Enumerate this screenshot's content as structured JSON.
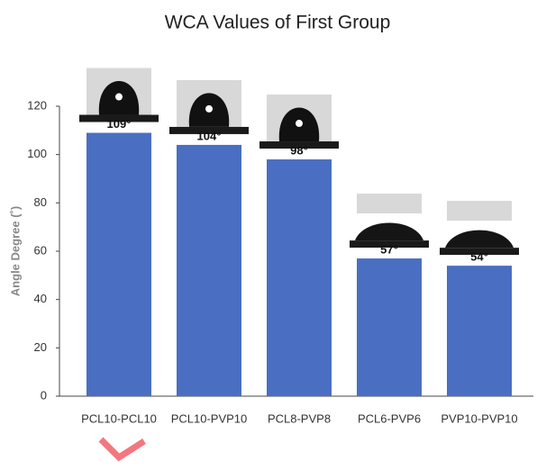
{
  "chart_data": {
    "type": "bar",
    "title": "WCA Values of First Group",
    "y_label": "Angle Degree (˚)",
    "categories": [
      "PCL10-PCL10",
      "PCL10-PVP10",
      "PCL8-PVP8",
      "PCL6-PVP6",
      "PVP10-PVP10"
    ],
    "values": [
      109,
      104,
      98,
      57,
      54
    ],
    "value_labels": [
      "109°",
      "104°",
      "98°",
      "57°",
      "54°"
    ],
    "color": "#4a6fc2",
    "ylim": [
      0,
      120
    ],
    "yticks": [
      0,
      20,
      40,
      60,
      80,
      100,
      120
    ],
    "grid": false
  }
}
